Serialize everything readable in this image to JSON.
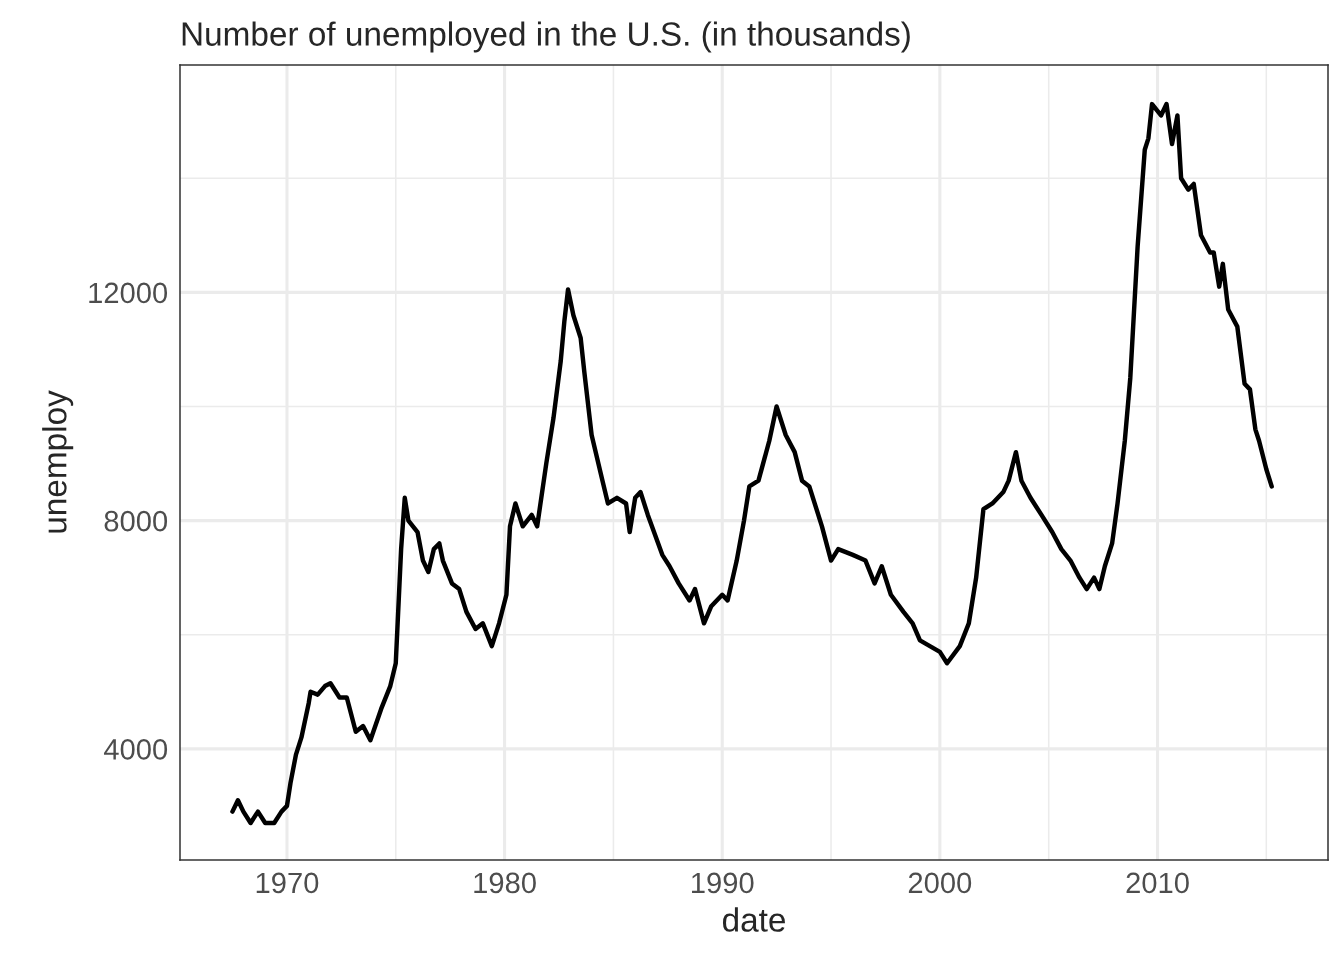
{
  "chart_data": {
    "type": "line",
    "title": "Number of unemployed in the U.S. (in thousands)",
    "xlabel": "date",
    "ylabel": "unemploy",
    "x": [
      "1967-07",
      "1967-10",
      "1968-01",
      "1968-05",
      "1968-09",
      "1969-01",
      "1969-06",
      "1969-10",
      "1970-01",
      "1970-03",
      "1970-06",
      "1970-09",
      "1971-01",
      "1971-02",
      "1971-06",
      "1971-10",
      "1972-01",
      "1972-06",
      "1972-10",
      "1973-03",
      "1973-07",
      "1973-11",
      "1974-05",
      "1974-10",
      "1975-01",
      "1975-04",
      "1975-06",
      "1975-08",
      "1976-01",
      "1976-04",
      "1976-07",
      "1976-10",
      "1977-01",
      "1977-03",
      "1977-08",
      "1977-12",
      "1978-04",
      "1978-09",
      "1979-01",
      "1979-06",
      "1979-10",
      "1980-02",
      "1980-04",
      "1980-07",
      "1980-11",
      "1981-04",
      "1981-07",
      "1981-12",
      "1982-04",
      "1982-08",
      "1982-10",
      "1982-12",
      "1983-03",
      "1983-07",
      "1983-09",
      "1984-01",
      "1984-07",
      "1984-10",
      "1985-03",
      "1985-08",
      "1985-10",
      "1986-01",
      "1986-04",
      "1986-08",
      "1987-04",
      "1987-08",
      "1988-01",
      "1988-07",
      "1988-10",
      "1989-03",
      "1989-07",
      "1990-01",
      "1990-04",
      "1990-09",
      "1991-01",
      "1991-04",
      "1991-09",
      "1992-03",
      "1992-07",
      "1992-12",
      "1993-05",
      "1993-09",
      "1994-01",
      "1994-08",
      "1995-01",
      "1995-05",
      "1996-01",
      "1996-08",
      "1997-01",
      "1997-05",
      "1997-10",
      "1998-05",
      "1998-10",
      "1999-02",
      "2000-01",
      "2000-05",
      "2000-12",
      "2001-05",
      "2001-09",
      "2002-01",
      "2002-06",
      "2002-12",
      "2003-03",
      "2003-07",
      "2003-10",
      "2004-03",
      "2004-09",
      "2005-03",
      "2005-08",
      "2006-01",
      "2006-06",
      "2006-10",
      "2007-02",
      "2007-05",
      "2007-08",
      "2007-12",
      "2008-03",
      "2008-07",
      "2008-10",
      "2009-02",
      "2009-06",
      "2009-08",
      "2009-10",
      "2010-03",
      "2010-06",
      "2010-09",
      "2010-12",
      "2011-02",
      "2011-06",
      "2011-09",
      "2012-01",
      "2012-06",
      "2012-08",
      "2012-11",
      "2013-01",
      "2013-04",
      "2013-09",
      "2014-01",
      "2014-04",
      "2014-07",
      "2014-09",
      "2015-01",
      "2015-04"
    ],
    "values": [
      2900,
      3100,
      2900,
      2700,
      2900,
      2700,
      2700,
      2900,
      3000,
      3400,
      3900,
      4200,
      4800,
      5000,
      4950,
      5100,
      5150,
      4900,
      4900,
      4300,
      4400,
      4150,
      4700,
      5100,
      5500,
      7500,
      8400,
      8000,
      7800,
      7300,
      7100,
      7500,
      7600,
      7300,
      6900,
      6800,
      6400,
      6100,
      6200,
      5800,
      6200,
      6700,
      7900,
      8300,
      7900,
      8100,
      7900,
      9000,
      9800,
      10800,
      11500,
      12050,
      11600,
      11200,
      10600,
      9500,
      8700,
      8300,
      8400,
      8300,
      7800,
      8400,
      8500,
      8100,
      7400,
      7200,
      6900,
      6600,
      6800,
      6200,
      6500,
      6700,
      6600,
      7300,
      8000,
      8600,
      8700,
      9400,
      10000,
      9500,
      9200,
      8700,
      8600,
      7900,
      7300,
      7500,
      7400,
      7300,
      6900,
      7200,
      6700,
      6400,
      6200,
      5900,
      5700,
      5500,
      5800,
      6200,
      7000,
      8200,
      8300,
      8500,
      8700,
      9200,
      8700,
      8400,
      8100,
      7800,
      7500,
      7300,
      7000,
      6800,
      7000,
      6800,
      7200,
      7600,
      8300,
      9400,
      10500,
      12800,
      14500,
      14700,
      15300,
      15100,
      15300,
      14600,
      15100,
      14000,
      13800,
      13900,
      13000,
      12700,
      12700,
      12100,
      12500,
      11700,
      11400,
      10400,
      10300,
      9600,
      9400,
      8900,
      8600
    ],
    "color": "#000000",
    "xlim": [
      "1965-02",
      "2017-11"
    ],
    "xticks": [
      {
        "value": "1970",
        "label": "1970"
      },
      {
        "value": "1975",
        "label": null
      },
      {
        "value": "1980",
        "label": "1980"
      },
      {
        "value": "1985",
        "label": null
      },
      {
        "value": "1990",
        "label": "1990"
      },
      {
        "value": "1995",
        "label": null
      },
      {
        "value": "2000",
        "label": "2000"
      },
      {
        "value": "2005",
        "label": null
      },
      {
        "value": "2010",
        "label": "2010"
      },
      {
        "value": "2015",
        "label": null
      }
    ],
    "ylim": [
      2052,
      15985
    ],
    "yticks": [
      4000,
      {
        "value": 6000,
        "label": null
      },
      8000,
      {
        "value": 10000,
        "label": null
      },
      12000,
      {
        "value": 14000,
        "label": null
      }
    ],
    "grid": true,
    "line_style": "solid",
    "marker": "none"
  }
}
